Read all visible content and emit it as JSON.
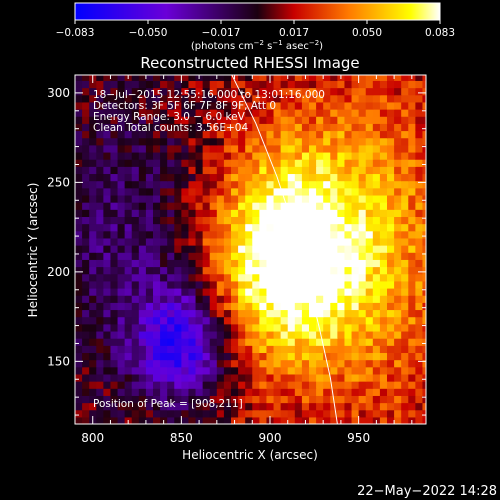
{
  "chart_data": {
    "type": "heatmap",
    "title": "Reconstructed RHESSI Image",
    "xlabel": "Heliocentric X (arcsec)",
    "ylabel": "Heliocentric Y (arcsec)",
    "xlim": [
      790,
      988
    ],
    "ylim": [
      115,
      310
    ],
    "x_ticks": [
      "800",
      "850",
      "900",
      "950"
    ],
    "y_ticks": [
      "150",
      "200",
      "250",
      "300"
    ],
    "colorbar": {
      "min": -0.083,
      "max": 0.083,
      "tick_labels": [
        "−0.083",
        "−0.050",
        "−0.017",
        "0.017",
        "0.050",
        "0.083"
      ],
      "units_parts": [
        "(photons cm",
        "−2",
        " s",
        "−1",
        " asec",
        "−2",
        ")"
      ],
      "colors": [
        "#0000ff",
        "#6a00d8",
        "#1a0010",
        "#c80000",
        "#ff7a00",
        "#ffff00",
        "#ffffff"
      ]
    },
    "annotations": {
      "line1": "18−Jul−2015 12:55:16.000 to 13:01:16.000",
      "line2": "Detectors: 3F 5F 6F 7F 8F 9F, Att 0",
      "line3": "Energy Range: 3.0 − 6.0 keV",
      "line4": "Clean     Total counts: 3.56E+04",
      "peak": "Position of Peak = [908,211]"
    },
    "peak_position": [
      908,
      211
    ],
    "limb_curve": [
      [
        878,
        311
      ],
      [
        892,
        283
      ],
      [
        904,
        253
      ],
      [
        913,
        226
      ],
      [
        921,
        197
      ],
      [
        928,
        168
      ],
      [
        934,
        141
      ],
      [
        938,
        115
      ]
    ],
    "timestamp": "22−May−2022 14:28"
  }
}
